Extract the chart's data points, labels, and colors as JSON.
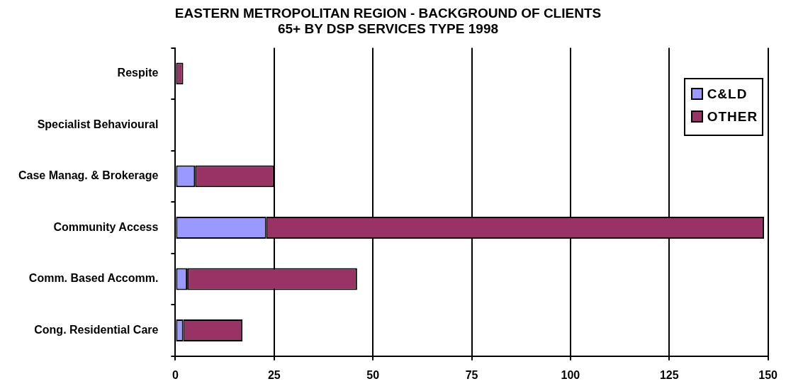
{
  "chart_data": {
    "type": "bar",
    "orientation": "horizontal",
    "stacked": true,
    "title": "EASTERN METROPOLITAN REGION - BACKGROUND OF CLIENTS\n65+ BY DSP SERVICES TYPE 1998",
    "categories": [
      "Respite",
      "Specialist Behavioural",
      "Case Manag. & Brokerage",
      "Community Access",
      "Comm. Based Accomm.",
      "Cong. Residential Care"
    ],
    "series": [
      {
        "name": "C&LD",
        "color": "#9999ff",
        "values": [
          0,
          0,
          5,
          23,
          3,
          2
        ]
      },
      {
        "name": "OTHER",
        "color": "#993366",
        "values": [
          2,
          0,
          20,
          126,
          43,
          15
        ]
      }
    ],
    "xlim": [
      0,
      150
    ],
    "xticks": [
      0,
      25,
      50,
      75,
      100,
      125,
      150
    ],
    "grid": "x",
    "legend": "top right"
  }
}
